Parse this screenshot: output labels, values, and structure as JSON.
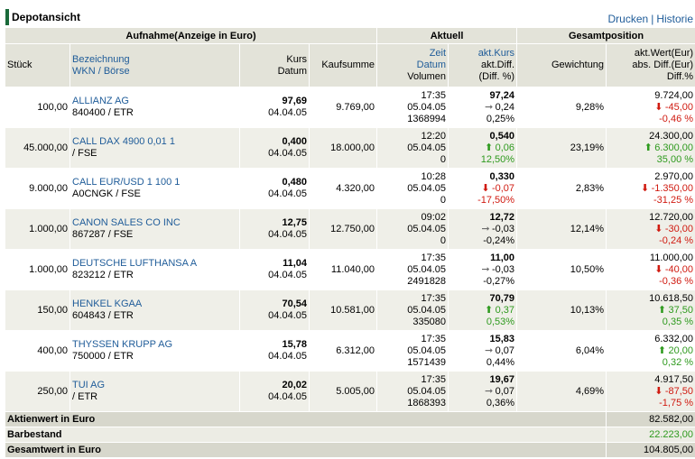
{
  "header": {
    "title": "Depotansicht",
    "print_label": "Drucken",
    "history_label": "Historie",
    "separator": "|"
  },
  "groups": {
    "purchase": "Aufnahme(Anzeige in Euro)",
    "current": "Aktuell",
    "total": "Gesamtposition"
  },
  "columns": {
    "qty": "Stück",
    "name_1": "Bezeichnung",
    "name_2": "WKN / Börse",
    "price_1": "Kurs",
    "price_2": "Datum",
    "buy_sum": "Kaufsumme",
    "time_1": "Zeit",
    "time_2": "Datum",
    "time_3": "Volumen",
    "cur_1": "akt.Kurs",
    "cur_2": "akt.Diff.",
    "cur_3": "(Diff. %)",
    "weight": "Gewichtung",
    "val_1": "akt.Wert(Eur)",
    "val_2": "abs. Diff.(Eur)",
    "val_3": "Diff.%"
  },
  "rows": [
    {
      "qty": "100,00",
      "name": "ALLIANZ AG",
      "wkn": "840400 / ETR",
      "price": "97,69",
      "price_date": "04.04.05",
      "buy_sum": "9.769,00",
      "time": "17:35",
      "date": "05.04.05",
      "volume": "1368994",
      "cur_price": "97,24",
      "cur_diff": "0,24",
      "cur_diff_dir": "flat",
      "cur_pct": "0,25%",
      "weight": "9,28%",
      "value": "9.724,00",
      "abs_diff": "-45,00",
      "abs_dir": "down",
      "pct": "-0,46 %"
    },
    {
      "qty": "45.000,00",
      "name": "CALL DAX 4900 0,01 1",
      "wkn": "/ FSE",
      "price": "0,400",
      "price_date": "04.04.05",
      "buy_sum": "18.000,00",
      "time": "12:20",
      "date": "05.04.05",
      "volume": "0",
      "cur_price": "0,540",
      "cur_diff": "0,06",
      "cur_diff_dir": "up",
      "cur_pct": "12,50%",
      "weight": "23,19%",
      "value": "24.300,00",
      "abs_diff": "6.300,00",
      "abs_dir": "up",
      "pct": "35,00 %"
    },
    {
      "qty": "9.000,00",
      "name": "CALL EUR/USD 1 100 1",
      "wkn": "A0CNGK / FSE",
      "price": "0,480",
      "price_date": "04.04.05",
      "buy_sum": "4.320,00",
      "time": "10:28",
      "date": "05.04.05",
      "volume": "0",
      "cur_price": "0,330",
      "cur_diff": "-0,07",
      "cur_diff_dir": "down",
      "cur_pct": "-17,50%",
      "weight": "2,83%",
      "value": "2.970,00",
      "abs_diff": "-1.350,00",
      "abs_dir": "down",
      "pct": "-31,25 %"
    },
    {
      "qty": "1.000,00",
      "name": "CANON SALES CO INC",
      "wkn": "867287 / FSE",
      "price": "12,75",
      "price_date": "04.04.05",
      "buy_sum": "12.750,00",
      "time": "09:02",
      "date": "05.04.05",
      "volume": "0",
      "cur_price": "12,72",
      "cur_diff": "-0,03",
      "cur_diff_dir": "flat",
      "cur_pct": "-0,24%",
      "weight": "12,14%",
      "value": "12.720,00",
      "abs_diff": "-30,00",
      "abs_dir": "down",
      "pct": "-0,24 %"
    },
    {
      "qty": "1.000,00",
      "name": "DEUTSCHE LUFTHANSA A",
      "wkn": "823212 / ETR",
      "price": "11,04",
      "price_date": "04.04.05",
      "buy_sum": "11.040,00",
      "time": "17:35",
      "date": "05.04.05",
      "volume": "2491828",
      "cur_price": "11,00",
      "cur_diff": "-0,03",
      "cur_diff_dir": "flat",
      "cur_pct": "-0,27%",
      "weight": "10,50%",
      "value": "11.000,00",
      "abs_diff": "-40,00",
      "abs_dir": "down",
      "pct": "-0,36 %"
    },
    {
      "qty": "150,00",
      "name": "HENKEL KGAA",
      "wkn": "604843 / ETR",
      "price": "70,54",
      "price_date": "04.04.05",
      "buy_sum": "10.581,00",
      "time": "17:35",
      "date": "05.04.05",
      "volume": "335080",
      "cur_price": "70,79",
      "cur_diff": "0,37",
      "cur_diff_dir": "up",
      "cur_pct": "0,53%",
      "weight": "10,13%",
      "value": "10.618,50",
      "abs_diff": "37,50",
      "abs_dir": "up",
      "pct": "0,35 %"
    },
    {
      "qty": "400,00",
      "name": "THYSSEN KRUPP AG",
      "wkn": "750000 / ETR",
      "price": "15,78",
      "price_date": "04.04.05",
      "buy_sum": "6.312,00",
      "time": "17:35",
      "date": "05.04.05",
      "volume": "1571439",
      "cur_price": "15,83",
      "cur_diff": "0,07",
      "cur_diff_dir": "flat",
      "cur_pct": "0,44%",
      "weight": "6,04%",
      "value": "6.332,00",
      "abs_diff": "20,00",
      "abs_dir": "up",
      "pct": "0,32 %"
    },
    {
      "qty": "250,00",
      "name": "TUI AG",
      "wkn": "/ ETR",
      "price": "20,02",
      "price_date": "04.04.05",
      "buy_sum": "5.005,00",
      "time": "17:35",
      "date": "05.04.05",
      "volume": "1868393",
      "cur_price": "19,67",
      "cur_diff": "0,07",
      "cur_diff_dir": "flat",
      "cur_pct": "0,36%",
      "weight": "4,69%",
      "value": "4.917,50",
      "abs_diff": "-87,50",
      "abs_dir": "down",
      "pct": "-1,75 %"
    }
  ],
  "footer": {
    "stock_value_label": "Aktienwert in Euro",
    "stock_value": "82.582,00",
    "cash_label": "Barbestand",
    "cash": "22.223,00",
    "total_label": "Gesamtwert in Euro",
    "total": "104.805,00"
  },
  "icons": {
    "up": "arrow-up-icon",
    "down": "arrow-down-icon",
    "flat": "arrow-right-icon"
  },
  "colors": {
    "accent": "#1a6a3a",
    "link": "#1f5c99",
    "positive": "#2e9a1e",
    "negative": "#d01a10",
    "header_bg": "#e3e3d9",
    "row_alt_bg": "#efefe8"
  }
}
